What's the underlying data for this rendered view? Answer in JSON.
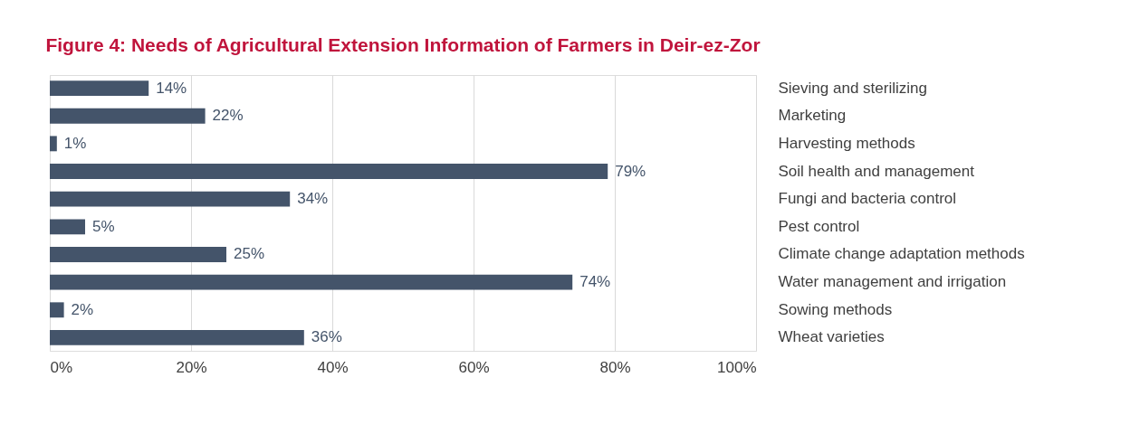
{
  "chart_data": {
    "type": "bar",
    "orientation": "horizontal",
    "title": "Figure 4: Needs of Agricultural Extension Information of Farmers in Deir-ez-Zor",
    "categories": [
      "Sieving and sterilizing",
      "Marketing",
      "Harvesting methods",
      "Soil health and management",
      "Fungi and bacteria control",
      "Pest control",
      "Climate change adaptation methods",
      "Water management and irrigation",
      "Sowing methods",
      "Wheat varieties"
    ],
    "values": [
      14,
      22,
      1,
      79,
      34,
      5,
      25,
      74,
      2,
      36
    ],
    "value_labels": [
      "14%",
      "22%",
      "1%",
      "79%",
      "34%",
      "5%",
      "25%",
      "74%",
      "2%",
      "36%"
    ],
    "color": "#44546a",
    "xlim": [
      0,
      100
    ],
    "xticks": [
      {
        "value": 0,
        "label": "0%"
      },
      {
        "value": 20,
        "label": "20%"
      },
      {
        "value": 40,
        "label": "40%"
      },
      {
        "value": 60,
        "label": "60%"
      },
      {
        "value": 80,
        "label": "80%"
      },
      {
        "value": 100,
        "label": "100%"
      }
    ],
    "grid": "x"
  }
}
